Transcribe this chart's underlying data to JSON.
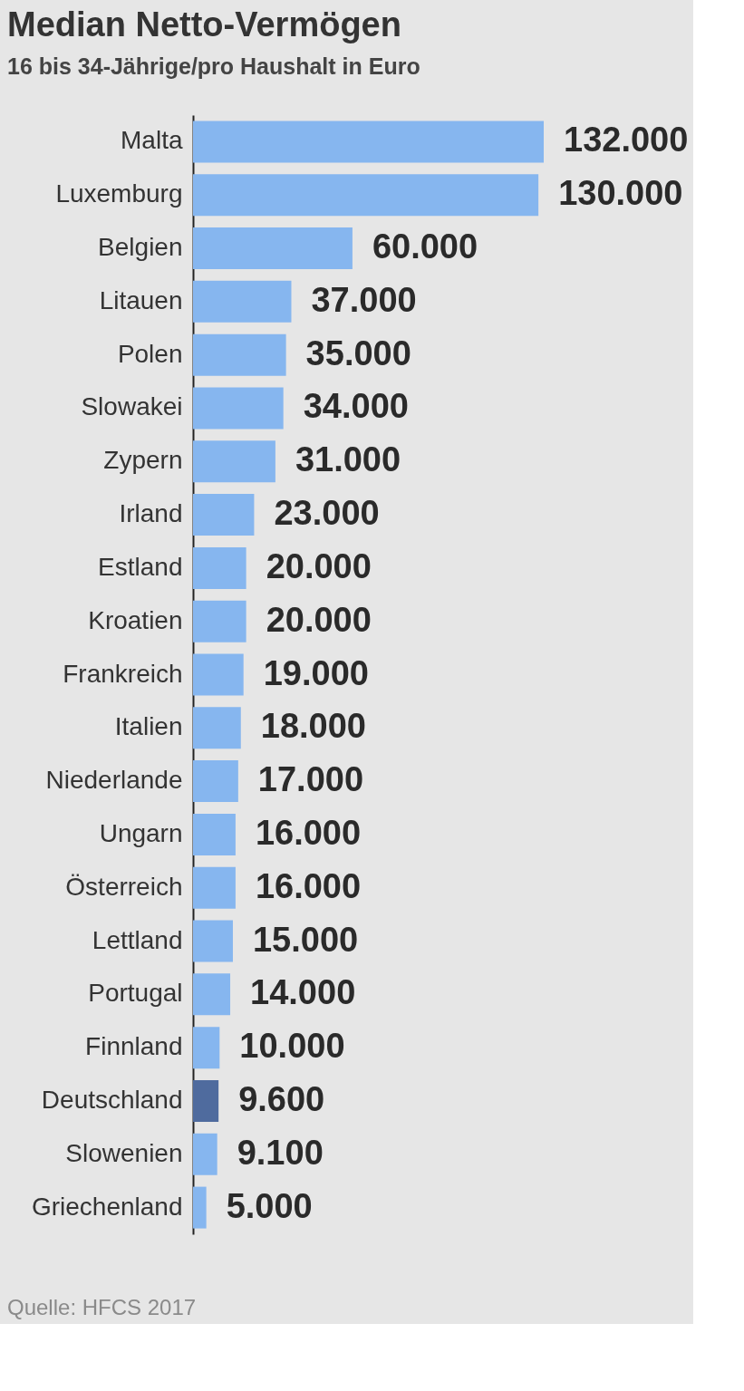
{
  "chart_data": {
    "type": "bar",
    "orientation": "horizontal",
    "title": "Median Netto-Vermögen",
    "subtitle": "16 bis 34-Jährige/pro Haushalt in Euro",
    "categories": [
      "Malta",
      "Luxemburg",
      "Belgien",
      "Litauen",
      "Polen",
      "Slowakei",
      "Zypern",
      "Irland",
      "Estland",
      "Kroatien",
      "Frankreich",
      "Italien",
      "Niederlande",
      "Ungarn",
      "Österreich",
      "Lettland",
      "Portugal",
      "Finnland",
      "Deutschland",
      "Slowenien",
      "Griechenland"
    ],
    "values": [
      132000,
      130000,
      60000,
      37000,
      35000,
      34000,
      31000,
      23000,
      20000,
      20000,
      19000,
      18000,
      17000,
      16000,
      16000,
      15000,
      14000,
      10000,
      9600,
      9100,
      5000
    ],
    "colors": [
      "#86b6ef",
      "#86b6ef",
      "#86b6ef",
      "#86b6ef",
      "#86b6ef",
      "#86b6ef",
      "#86b6ef",
      "#86b6ef",
      "#86b6ef",
      "#86b6ef",
      "#86b6ef",
      "#86b6ef",
      "#86b6ef",
      "#86b6ef",
      "#86b6ef",
      "#86b6ef",
      "#86b6ef",
      "#86b6ef",
      "#4f6b9e",
      "#86b6ef",
      "#86b6ef"
    ],
    "value_labels": [
      "132.000",
      "130.000",
      "60.000",
      "37.000",
      "35.000",
      "34.000",
      "31.000",
      "23.000",
      "20.000",
      "20.000",
      "19.000",
      "18.000",
      "17.000",
      "16.000",
      "16.000",
      "15.000",
      "14.000",
      "10.000",
      "9.600",
      "9.100",
      "5.000"
    ],
    "annotations": [
      "Quelle: HFCS 2017"
    ]
  }
}
